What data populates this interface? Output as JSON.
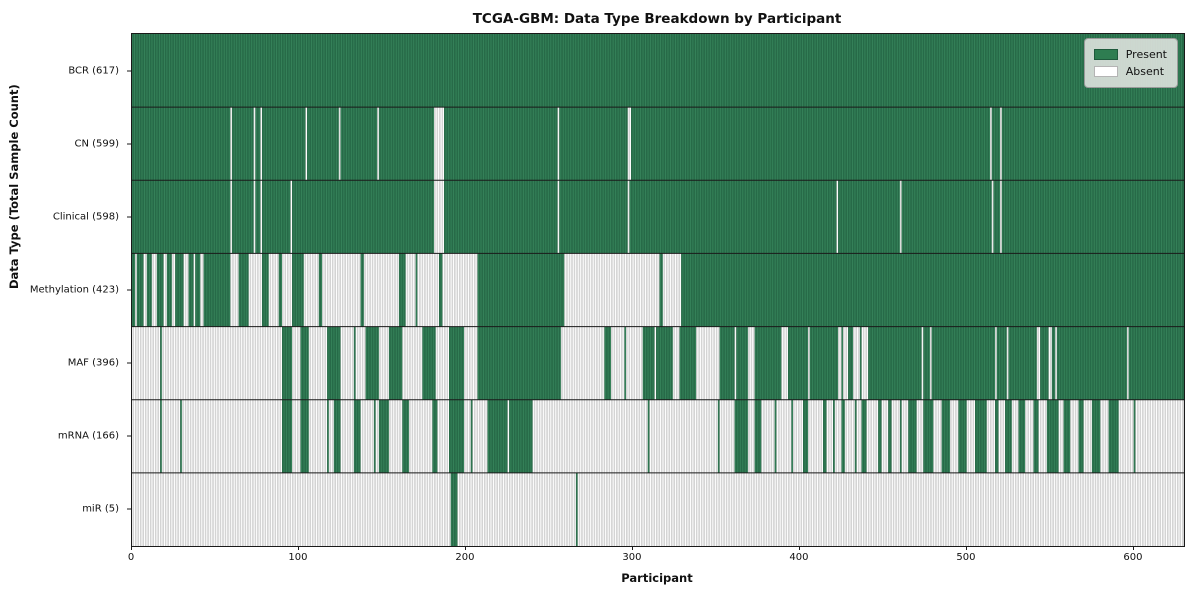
{
  "title": "TCGA-GBM: Data Type Breakdown by Participant",
  "x_axis": {
    "label": "Participant",
    "ticks": [
      0,
      100,
      200,
      300,
      400,
      500,
      600
    ]
  },
  "y_axis": {
    "label": "Data Type (Total Sample Count)"
  },
  "legend": {
    "present_label": "Present",
    "absent_label": "Absent"
  },
  "colors": {
    "present_fill": "#348058",
    "present_edge": "#1e5a3c",
    "absent_fill": "#fdfdfd",
    "absent_edge": "#b2b2b2",
    "divider": "#1a1a1a",
    "legend_bg": "#dee2de",
    "legend_border": "#9a9a9a"
  },
  "chart_data": {
    "type": "heatmap",
    "title": "TCGA-GBM: Data Type Breakdown by Participant",
    "xlabel": "Participant",
    "ylabel": "Data Type (Total Sample Count)",
    "legend_entries": [
      "Present",
      "Absent"
    ],
    "legend_position": "upper right",
    "n_participants": 630,
    "x_range": [
      0,
      630
    ],
    "categories": [
      "BCR (617)",
      "CN (599)",
      "Clinical (598)",
      "Methylation (423)",
      "MAF (396)",
      "mRNA (166)",
      "miR (5)"
    ],
    "present_counts": [
      617,
      599,
      598,
      423,
      396,
      166,
      5
    ],
    "rows": [
      {
        "label": "BCR (617)",
        "name": "BCR",
        "total": 617,
        "base": 1,
        "runs": []
      },
      {
        "label": "CN (599)",
        "name": "CN",
        "total": 599,
        "base": 1,
        "runs": [
          [
            59,
            60
          ],
          [
            73,
            74
          ],
          [
            77,
            78
          ],
          [
            104,
            105
          ],
          [
            124,
            125
          ],
          [
            147,
            148
          ],
          [
            181,
            187
          ],
          [
            255,
            256
          ],
          [
            297,
            299
          ],
          [
            514,
            515
          ],
          [
            520,
            521
          ]
        ]
      },
      {
        "label": "Clinical (598)",
        "name": "Clinical",
        "total": 598,
        "base": 1,
        "runs": [
          [
            59,
            60
          ],
          [
            73,
            74
          ],
          [
            77,
            78
          ],
          [
            95,
            96
          ],
          [
            181,
            187
          ],
          [
            255,
            256
          ],
          [
            297,
            298
          ],
          [
            422,
            423
          ],
          [
            460,
            461
          ],
          [
            515,
            516
          ],
          [
            520,
            521
          ]
        ]
      },
      {
        "label": "Methylation (423)",
        "name": "Methylation",
        "total": 423,
        "base": 1,
        "runs": [
          [
            2,
            3
          ],
          [
            7,
            9
          ],
          [
            12,
            15
          ],
          [
            19,
            21
          ],
          [
            24,
            26
          ],
          [
            31,
            34
          ],
          [
            37,
            38
          ],
          [
            41,
            43
          ],
          [
            59,
            64
          ],
          [
            70,
            78
          ],
          [
            82,
            88
          ],
          [
            90,
            96
          ],
          [
            103,
            112
          ],
          [
            114,
            137
          ],
          [
            139,
            160
          ],
          [
            164,
            170
          ],
          [
            171,
            184
          ],
          [
            186,
            207
          ],
          [
            259,
            316
          ],
          [
            318,
            329
          ]
        ]
      },
      {
        "label": "MAF (396)",
        "name": "MAF",
        "total": 396,
        "base": 1,
        "runs": [
          [
            0,
            17
          ],
          [
            18,
            90
          ],
          [
            96,
            101
          ],
          [
            106,
            117
          ],
          [
            125,
            133
          ],
          [
            134,
            140
          ],
          [
            148,
            154
          ],
          [
            162,
            174
          ],
          [
            182,
            190
          ],
          [
            199,
            207
          ],
          [
            257,
            283
          ],
          [
            287,
            295
          ],
          [
            296,
            306
          ],
          [
            313,
            314
          ],
          [
            324,
            328
          ],
          [
            338,
            352
          ],
          [
            361,
            362
          ],
          [
            369,
            373
          ],
          [
            389,
            393
          ],
          [
            405,
            406
          ],
          [
            423,
            425
          ],
          [
            426,
            429
          ],
          [
            432,
            436
          ],
          [
            437,
            441
          ],
          [
            473,
            474
          ],
          [
            478,
            479
          ],
          [
            517,
            518
          ],
          [
            524,
            525
          ],
          [
            542,
            544
          ],
          [
            549,
            551
          ],
          [
            553,
            554
          ],
          [
            596,
            597
          ]
        ]
      },
      {
        "label": "mRNA (166)",
        "name": "mRNA",
        "total": 166,
        "base": 0,
        "runs": [
          [
            17,
            18
          ],
          [
            29,
            30
          ],
          [
            90,
            96
          ],
          [
            101,
            106
          ],
          [
            117,
            118
          ],
          [
            121,
            125
          ],
          [
            133,
            137
          ],
          [
            145,
            146
          ],
          [
            148,
            154
          ],
          [
            162,
            166
          ],
          [
            180,
            183
          ],
          [
            190,
            199
          ],
          [
            203,
            204
          ],
          [
            213,
            225
          ],
          [
            226,
            240
          ],
          [
            309,
            310
          ],
          [
            351,
            352
          ],
          [
            361,
            369
          ],
          [
            373,
            377
          ],
          [
            385,
            386
          ],
          [
            395,
            396
          ],
          [
            402,
            405
          ],
          [
            414,
            416
          ],
          [
            420,
            421
          ],
          [
            425,
            427
          ],
          [
            433,
            434
          ],
          [
            437,
            440
          ],
          [
            447,
            449
          ],
          [
            453,
            455
          ],
          [
            460,
            461
          ],
          [
            465,
            470
          ],
          [
            474,
            480
          ],
          [
            485,
            490
          ],
          [
            495,
            500
          ],
          [
            505,
            512
          ],
          [
            517,
            519
          ],
          [
            523,
            527
          ],
          [
            531,
            535
          ],
          [
            540,
            543
          ],
          [
            548,
            555
          ],
          [
            558,
            562
          ],
          [
            567,
            570
          ],
          [
            575,
            580
          ],
          [
            585,
            591
          ],
          [
            600,
            601
          ]
        ]
      },
      {
        "label": "miR (5)",
        "name": "miR",
        "total": 5,
        "base": 0,
        "runs": [
          [
            191,
            195
          ],
          [
            266,
            267
          ]
        ]
      }
    ]
  }
}
